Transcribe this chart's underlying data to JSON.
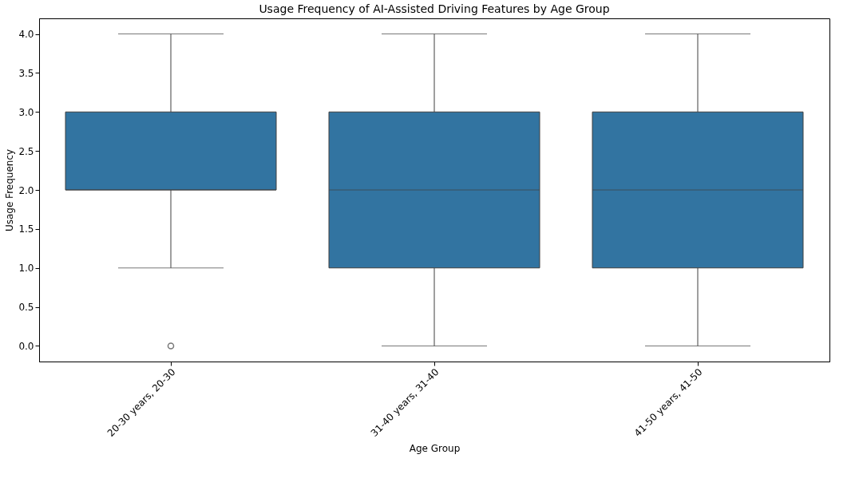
{
  "chart_data": {
    "type": "box",
    "title": "Usage Frequency of AI-Assisted Driving Features by Age Group",
    "xlabel": "Age Group",
    "ylabel": "Usage Frequency",
    "categories": [
      "20-30 years, 20-30",
      "31-40 years, 31-40",
      "41-50 years, 41-50"
    ],
    "boxes": [
      {
        "low": 1,
        "q1": 2,
        "median": 2,
        "q3": 3,
        "high": 4,
        "outliers": [
          0
        ]
      },
      {
        "low": 0,
        "q1": 1,
        "median": 2,
        "q3": 3,
        "high": 4
      },
      {
        "low": 0,
        "q1": 1,
        "median": 2,
        "q3": 3,
        "high": 4
      }
    ],
    "color": "#3274a1",
    "ylim": [
      -0.2,
      4.2
    ],
    "yticks": [
      {
        "value": 0,
        "label": "0.0"
      },
      {
        "value": 0.5,
        "label": "0.5"
      },
      {
        "value": 1,
        "label": "1.0"
      },
      {
        "value": 1.5,
        "label": "1.5"
      },
      {
        "value": 2,
        "label": "2.0"
      },
      {
        "value": 2.5,
        "label": "2.5"
      },
      {
        "value": 3,
        "label": "3.0"
      },
      {
        "value": 3.5,
        "label": "3.5"
      },
      {
        "value": 4,
        "label": "4.0"
      }
    ],
    "grid": false
  }
}
